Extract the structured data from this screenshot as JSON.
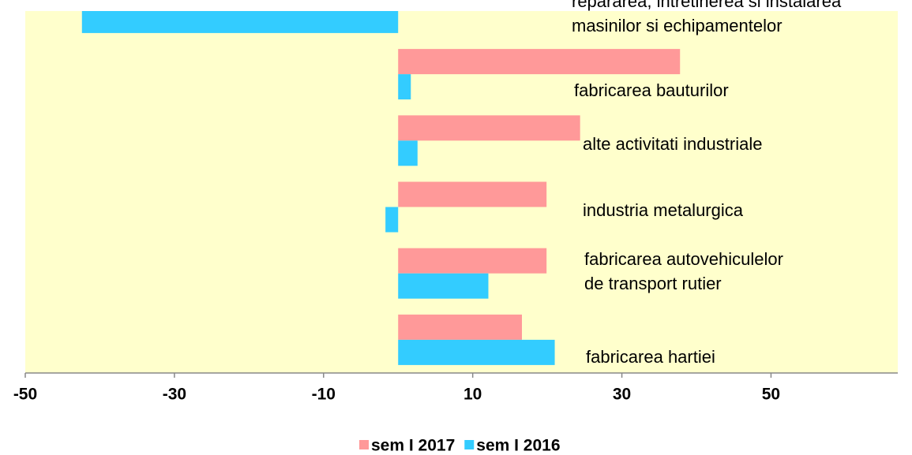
{
  "chart_data": {
    "type": "hbar",
    "categories": [
      "repararea, intretinerea si instalarea\nmasinilor si echipamentelor",
      "fabricarea bauturilor",
      "alte activitati industriale",
      "industria metalurgica",
      "fabricarea autovehiculelor\nde transport rutier",
      "fabricarea hartiei"
    ],
    "series": [
      {
        "name": "sem I 2017",
        "color": "#ff9999",
        "values": [
          null,
          37.8,
          24.4,
          19.9,
          19.9,
          16.6
        ]
      },
      {
        "name": "sem I 2016",
        "color": "#33ccff",
        "values": [
          -42.4,
          1.7,
          2.6,
          -1.7,
          12.1,
          21.0
        ]
      }
    ],
    "xlim": [
      -50,
      67
    ],
    "xticks": [
      -50,
      -30,
      -10,
      10,
      30,
      50
    ],
    "background": "#ffffcc",
    "legend": "bottom"
  }
}
